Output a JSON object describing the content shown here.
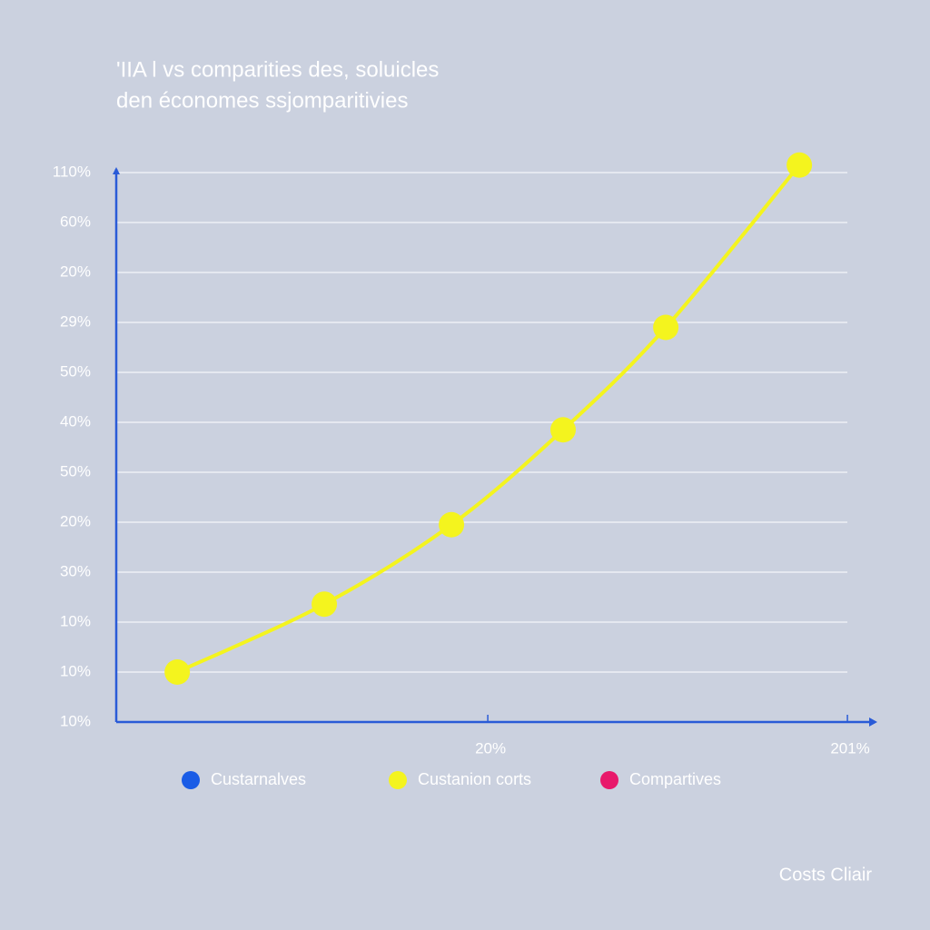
{
  "chart_data": {
    "type": "line",
    "title": [
      "'IIA l vs comparities des, soluicles",
      "den économes ssjomparitivies"
    ],
    "ytick_labels": [
      "110%",
      "60%",
      "20%",
      "29%",
      "50%",
      "40%",
      "50%",
      "20%",
      "30%",
      "10%",
      "10%",
      "10%"
    ],
    "ylim": [
      0,
      11
    ],
    "yticks": [
      11,
      10,
      9,
      8,
      7,
      6,
      5,
      4,
      3,
      2,
      1,
      0
    ],
    "xlim": [
      -167,
      215.6
    ],
    "xticks": [
      {
        "value": 20,
        "label": "20%"
      },
      {
        "value": 201,
        "label": "201%"
      }
    ],
    "x": [
      -136.3,
      -62.3,
      1.7,
      57.9,
      109.6,
      176.8
    ],
    "values": [
      1.0,
      2.36,
      3.95,
      5.85,
      7.9,
      11.15
    ],
    "color": "#f4f41e",
    "grid": true,
    "legend": [
      {
        "name": "Custarnalves",
        "color": "#1a5ce6"
      },
      {
        "name": "Custanion corts",
        "color": "#f4f41e"
      },
      {
        "name": "Compartives",
        "color": "#e8196b"
      }
    ],
    "footer": "Costs Cliair"
  }
}
